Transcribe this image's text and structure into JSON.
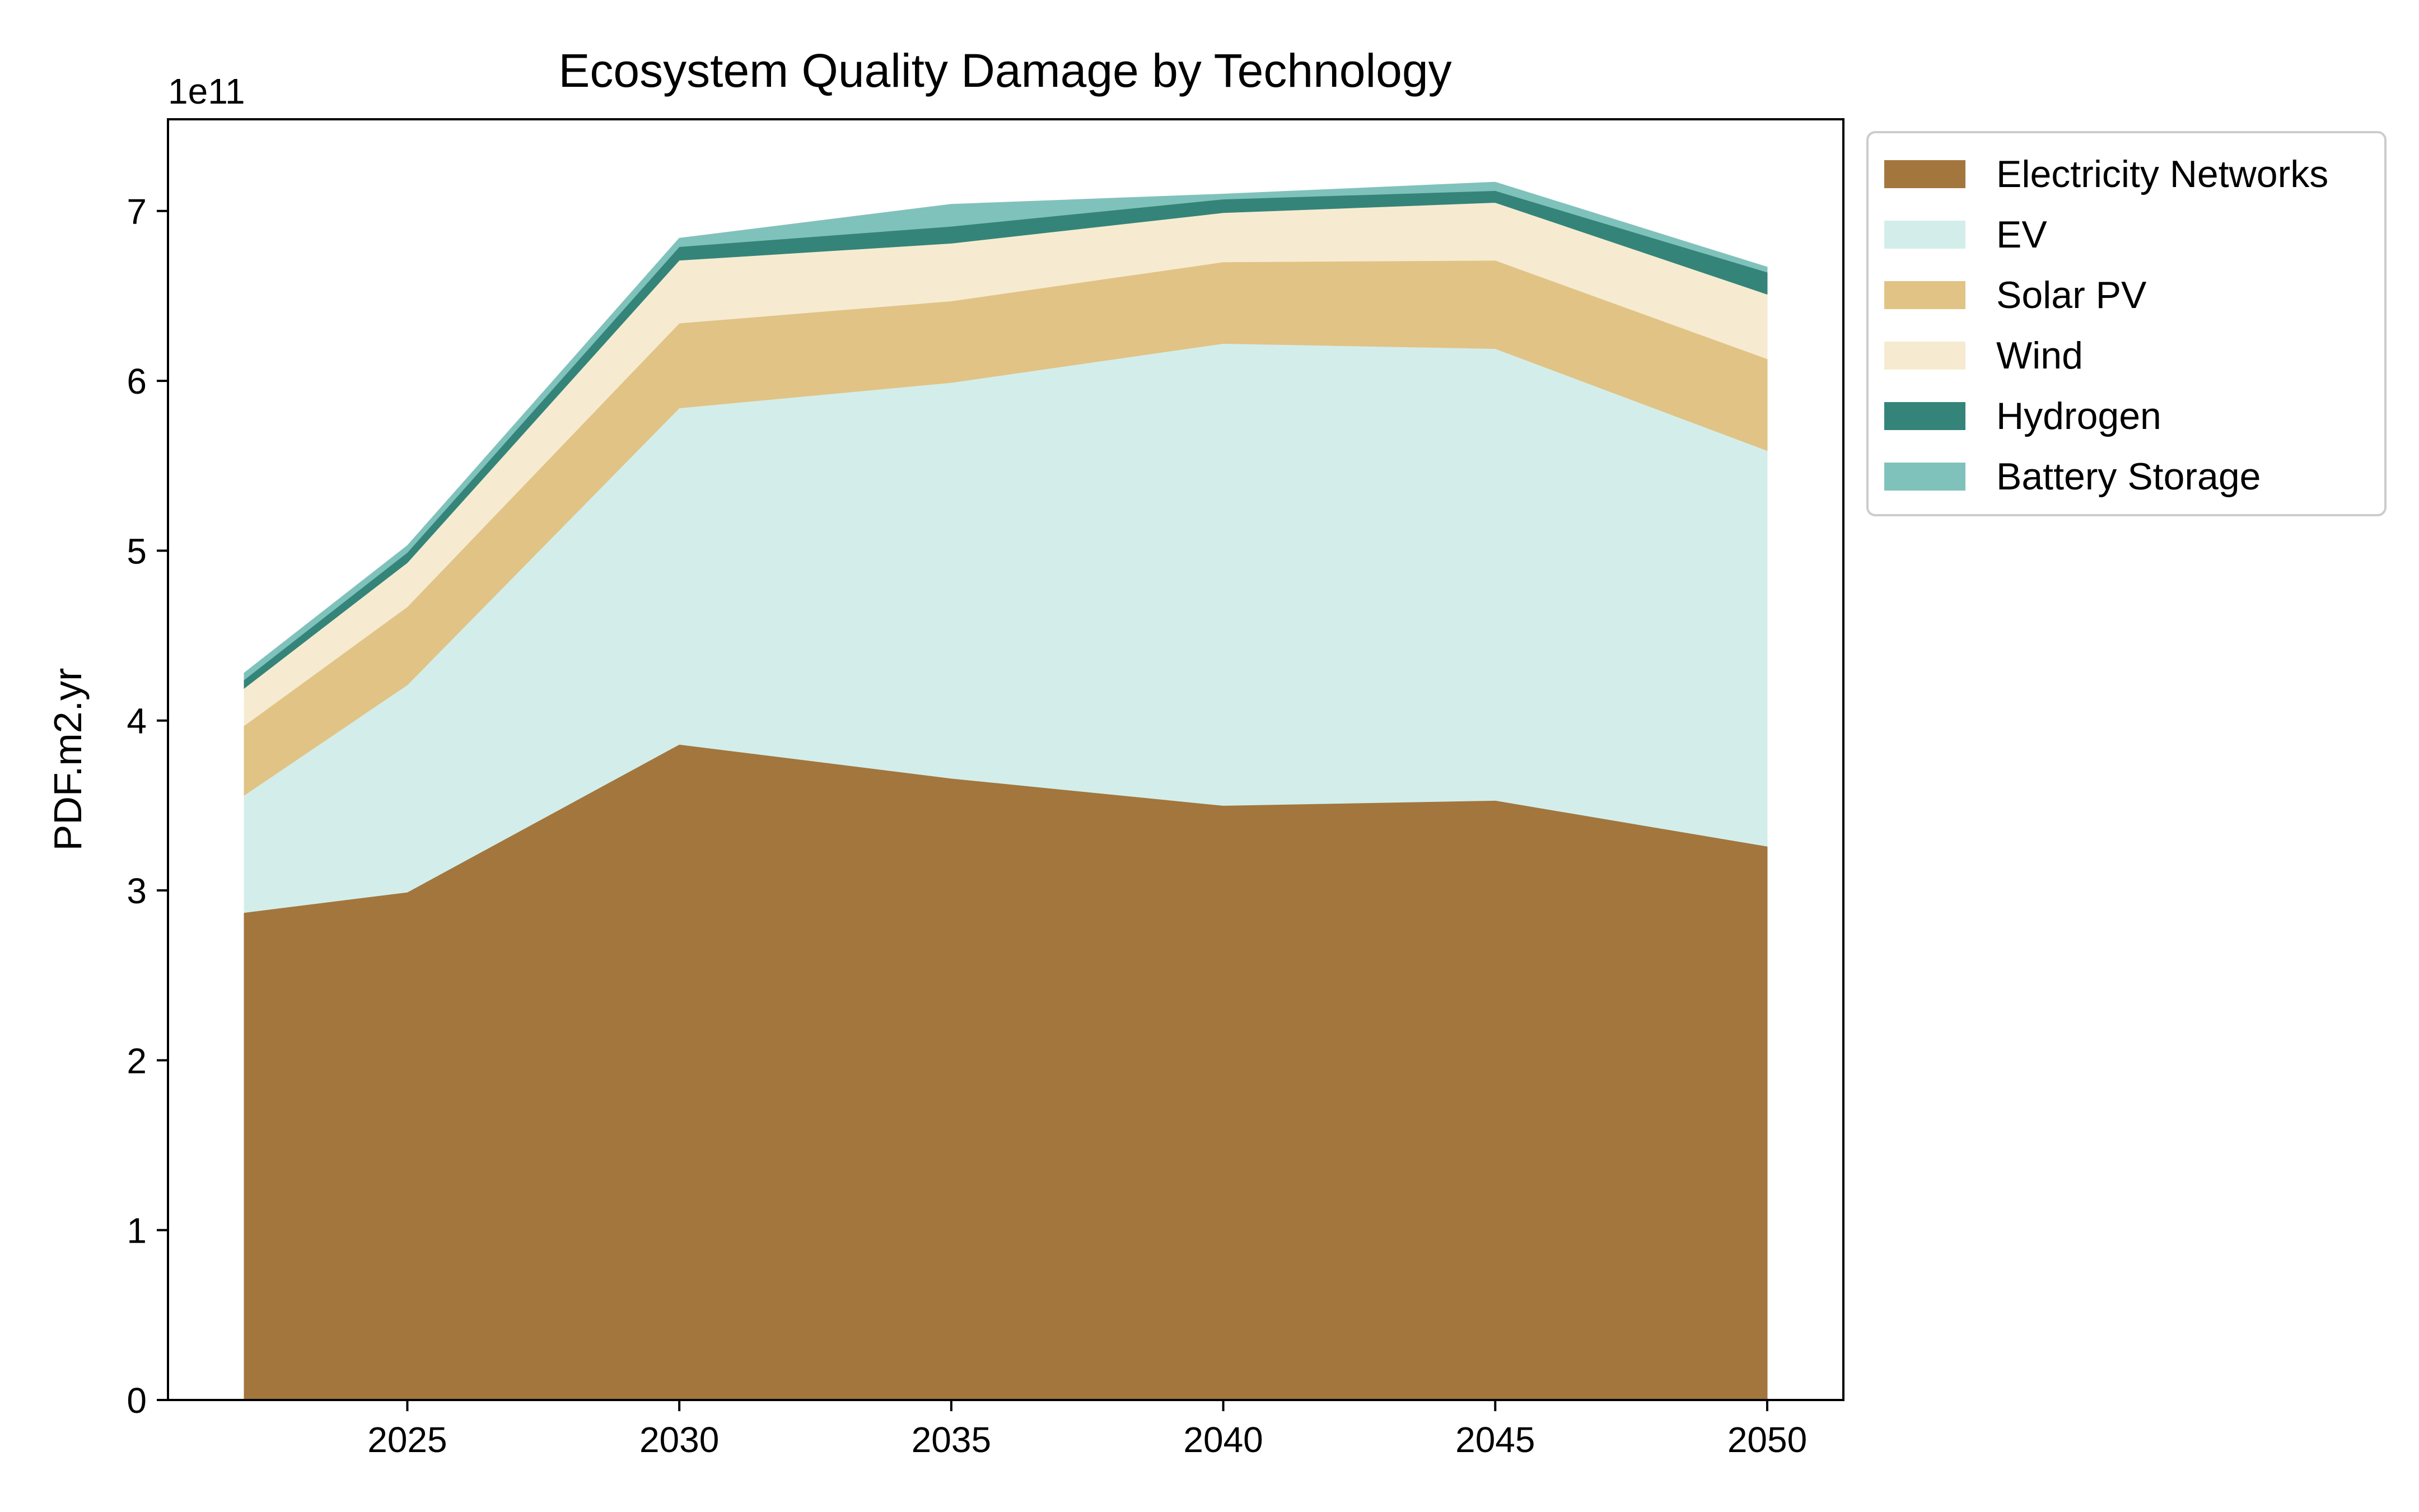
{
  "chart_data": {
    "type": "area",
    "stacked": true,
    "title": "Ecosystem Quality Damage by Technology",
    "xlabel": "",
    "ylabel": "PDF.m2.yr",
    "y_offset_label": "1e11",
    "y_scale_factor": 100000000000,
    "x": [
      2022,
      2025,
      2030,
      2035,
      2040,
      2045,
      2050
    ],
    "xticks": [
      2025,
      2030,
      2035,
      2040,
      2045,
      2050
    ],
    "xlim": [
      2020.6,
      2051.4
    ],
    "yticks": [
      0,
      1,
      2,
      3,
      4,
      5,
      6,
      7
    ],
    "ylim": [
      0,
      7.54
    ],
    "grid": false,
    "legend_position": "outside-upper-right",
    "series": [
      {
        "name": "Electricity Networks",
        "color": "#a3763d",
        "values": [
          2.87,
          2.99,
          3.86,
          3.66,
          3.5,
          3.53,
          3.26
        ]
      },
      {
        "name": "EV",
        "color": "#d3eeea",
        "values": [
          0.69,
          1.22,
          1.98,
          2.33,
          2.72,
          2.66,
          2.33
        ]
      },
      {
        "name": "Solar PV",
        "color": "#e1c386",
        "values": [
          0.41,
          0.46,
          0.5,
          0.48,
          0.48,
          0.52,
          0.54
        ]
      },
      {
        "name": "Wind",
        "color": "#f6ebd0",
        "values": [
          0.22,
          0.26,
          0.37,
          0.34,
          0.29,
          0.34,
          0.38
        ]
      },
      {
        "name": "Hydrogen",
        "color": "#358479",
        "values": [
          0.05,
          0.06,
          0.08,
          0.1,
          0.08,
          0.07,
          0.13
        ]
      },
      {
        "name": "Battery Storage",
        "color": "#7fc2bb",
        "values": [
          0.04,
          0.04,
          0.05,
          0.13,
          0.03,
          0.05,
          0.03
        ]
      }
    ]
  }
}
